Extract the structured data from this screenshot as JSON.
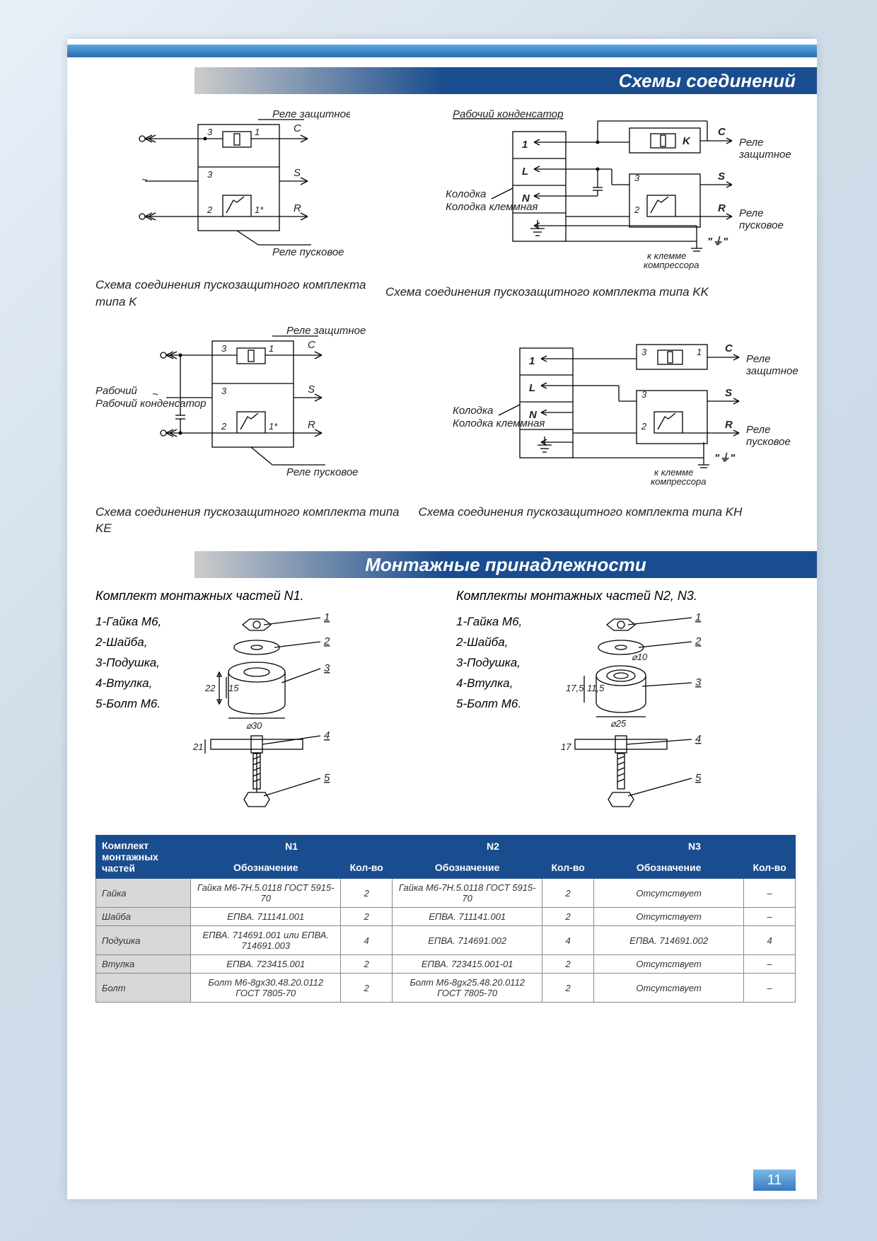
{
  "colors": {
    "header_bg_start": "#cccccc",
    "header_bg_end": "#1a4d8f",
    "table_header_bg": "#1a4d8f",
    "table_rowname_bg": "#d8d8d8",
    "page_bg": "#ffffff",
    "body_bg_gradient": [
      "#e8f0f8",
      "#d0dce8",
      "#c8d8e8"
    ],
    "pagenum_bg": [
      "#7ab8e8",
      "#3a7bc0"
    ]
  },
  "section1": {
    "title": "Схемы соединений"
  },
  "section2": {
    "title": "Монтажные принадлежности"
  },
  "diagrams": {
    "d1": {
      "top_label": "Реле защитное",
      "bottom_label": "Реле пусковое",
      "pins": [
        "C",
        "S",
        "R"
      ],
      "caption": "Схема соединения пускозащитного комплекта типа K"
    },
    "d2": {
      "top_label": "Рабочий конденсатор",
      "side_label_top": "Реле защитное",
      "side_label_bottom": "Реле пусковое",
      "block_label": "Колодка клеммная",
      "pins_left": [
        "1",
        "L",
        "N"
      ],
      "pins_right": [
        "K",
        "C",
        "S",
        "R"
      ],
      "footer": "к клемме компрессора",
      "caption": "Схема соединения пускозащитного комплекта типа KK"
    },
    "d3": {
      "top_label": "Реле защитное",
      "bottom_label": "Реле пусковое",
      "side_label": "Рабочий конденсатор",
      "pins": [
        "C",
        "S",
        "R"
      ],
      "caption": "Схема соединения пускозащитного комплекта типа KE"
    },
    "d4": {
      "side_label_top": "Реле защитное",
      "side_label_bottom": "Реле пусковое",
      "block_label": "Колодка клеммная",
      "pins_left": [
        "1",
        "L",
        "N"
      ],
      "pins_right": [
        "C",
        "S",
        "R"
      ],
      "footer": "к клемме компрессора",
      "caption": "Схема соединения пускозащитного комплекта типа KH"
    }
  },
  "mounting": {
    "set1": {
      "title": "Комплект монтажных частей N1.",
      "parts": [
        "1-Гайка М6,",
        "2-Шайба,",
        "3-Подушка,",
        "4-Втулка,",
        "5-Болт М6."
      ],
      "dims": {
        "h1": "22",
        "h2": "15",
        "d": "⌀30",
        "h3": "21"
      },
      "callouts": [
        "1",
        "2",
        "3",
        "4",
        "5"
      ]
    },
    "set2": {
      "title": "Комплекты монтажных частей N2, N3.",
      "parts": [
        "1-Гайка М6,",
        "2-Шайба,",
        "3-Подушка,",
        "4-Втулка,",
        "5-Болт М6."
      ],
      "dims": {
        "h1": "17,5",
        "h2": "11,5",
        "d_top": "⌀10",
        "d": "⌀25",
        "h3": "17"
      },
      "callouts": [
        "1",
        "2",
        "3",
        "4",
        "5"
      ]
    }
  },
  "table": {
    "head_rowspan": "Комплект монтажных частей",
    "groups": [
      "N1",
      "N2",
      "N3"
    ],
    "subheads": [
      "Обозначение",
      "Кол-во"
    ],
    "rows": [
      {
        "name": "Гайка",
        "c": [
          [
            "Гайка М6-7H.5.0118 ГОСТ 5915-70",
            "2"
          ],
          [
            "Гайка М6-7H.5.0118 ГОСТ 5915-70",
            "2"
          ],
          [
            "Отсутствует",
            "–"
          ]
        ]
      },
      {
        "name": "Шайба",
        "c": [
          [
            "ЕПВА. 711141.001",
            "2"
          ],
          [
            "ЕПВА. 711141.001",
            "2"
          ],
          [
            "Отсутствует",
            "–"
          ]
        ]
      },
      {
        "name": "Подушка",
        "c": [
          [
            "ЕПВА. 714691.001 или ЕПВА. 714691.003",
            "4"
          ],
          [
            "ЕПВА. 714691.002",
            "4"
          ],
          [
            "ЕПВА. 714691.002",
            "4"
          ]
        ]
      },
      {
        "name": "Втулка",
        "c": [
          [
            "ЕПВА. 723415.001",
            "2"
          ],
          [
            "ЕПВА. 723415.001-01",
            "2"
          ],
          [
            "Отсутствует",
            "–"
          ]
        ]
      },
      {
        "name": "Болт",
        "c": [
          [
            "Болт М6-8gx30.48.20.0112 ГОСТ 7805-70",
            "2"
          ],
          [
            "Болт М6-8gx25.48.20.0112 ГОСТ 7805-70",
            "2"
          ],
          [
            "Отсутствует",
            "–"
          ]
        ]
      }
    ]
  },
  "page_number": "11"
}
